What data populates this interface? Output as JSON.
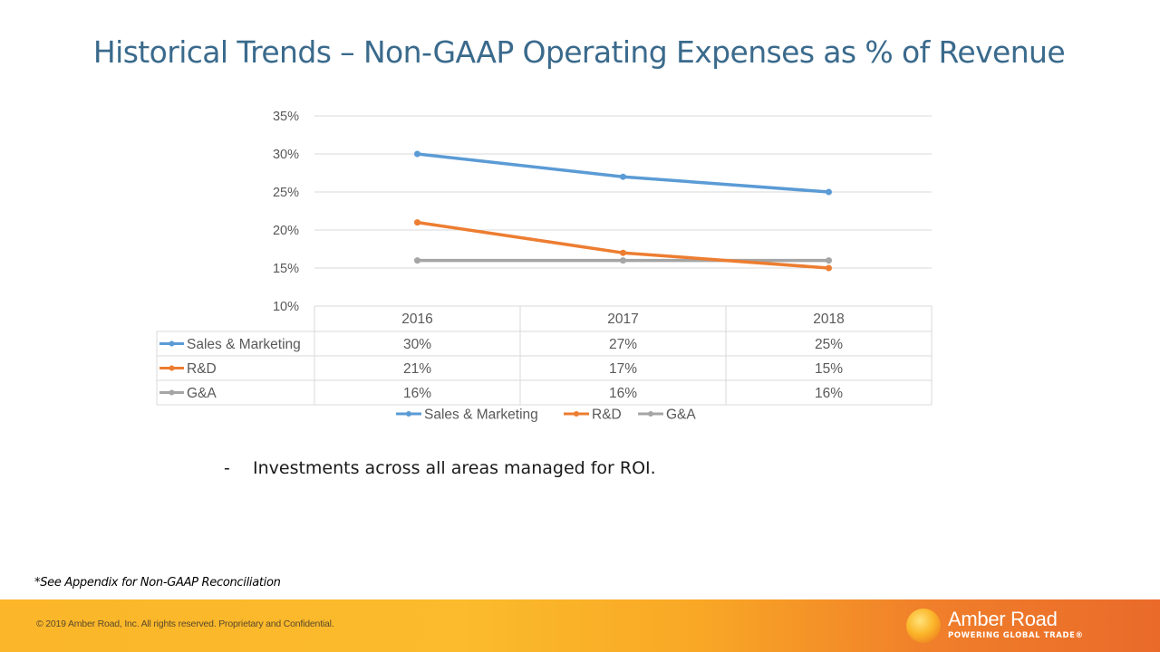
{
  "slide": {
    "title": "Historical Trends – Non-GAAP Operating Expenses as % of Revenue",
    "bullet_marker": "-",
    "bullet_text": "Investments across all areas managed for ROI.",
    "footnote": "*See Appendix for Non-GAAP Reconciliation",
    "copyright": "© 2019 Amber Road, Inc. All rights reserved. Proprietary and Confidential.",
    "logo_name": "Amber Road",
    "logo_tagline": "POWERING GLOBAL TRADE®"
  },
  "chart_data": {
    "type": "line",
    "title": "",
    "xlabel": "",
    "ylabel": "",
    "categories": [
      "2016",
      "2017",
      "2018"
    ],
    "ylim": [
      10,
      35
    ],
    "yticks": [
      10,
      15,
      20,
      25,
      30,
      35
    ],
    "ytick_labels": [
      "10%",
      "15%",
      "20%",
      "25%",
      "30%",
      "35%"
    ],
    "grid": true,
    "legend": "bottom",
    "data_table": true,
    "series": [
      {
        "name": "Sales & Marketing",
        "values": [
          30,
          27,
          25
        ],
        "labels": [
          "30%",
          "27%",
          "25%"
        ],
        "color": "#5b9bd5"
      },
      {
        "name": "R&D",
        "values": [
          21,
          17,
          15
        ],
        "labels": [
          "21%",
          "17%",
          "15%"
        ],
        "color": "#ed7d31"
      },
      {
        "name": "G&A",
        "values": [
          16,
          16,
          16
        ],
        "labels": [
          "16%",
          "16%",
          "16%"
        ],
        "color": "#a5a5a5"
      }
    ]
  }
}
